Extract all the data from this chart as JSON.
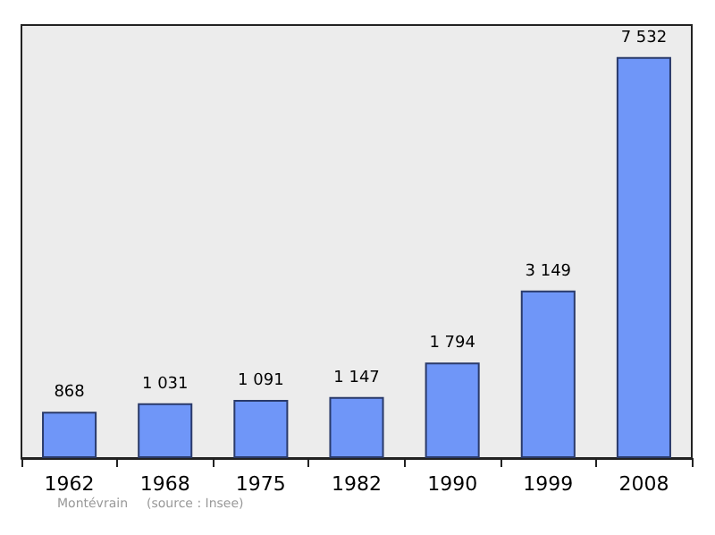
{
  "chart_data": {
    "type": "bar",
    "categories": [
      "1962",
      "1968",
      "1975",
      "1982",
      "1990",
      "1999",
      "2008"
    ],
    "values": [
      868,
      1031,
      1091,
      1147,
      1794,
      3149,
      7532
    ],
    "value_labels": [
      "868",
      "1 031",
      "1 091",
      "1 147",
      "1 794",
      "3 149",
      "7 532"
    ],
    "color": "#6f96f8",
    "annotations": [
      "Montévrain",
      "(source : Insee)"
    ],
    "grid": false
  }
}
